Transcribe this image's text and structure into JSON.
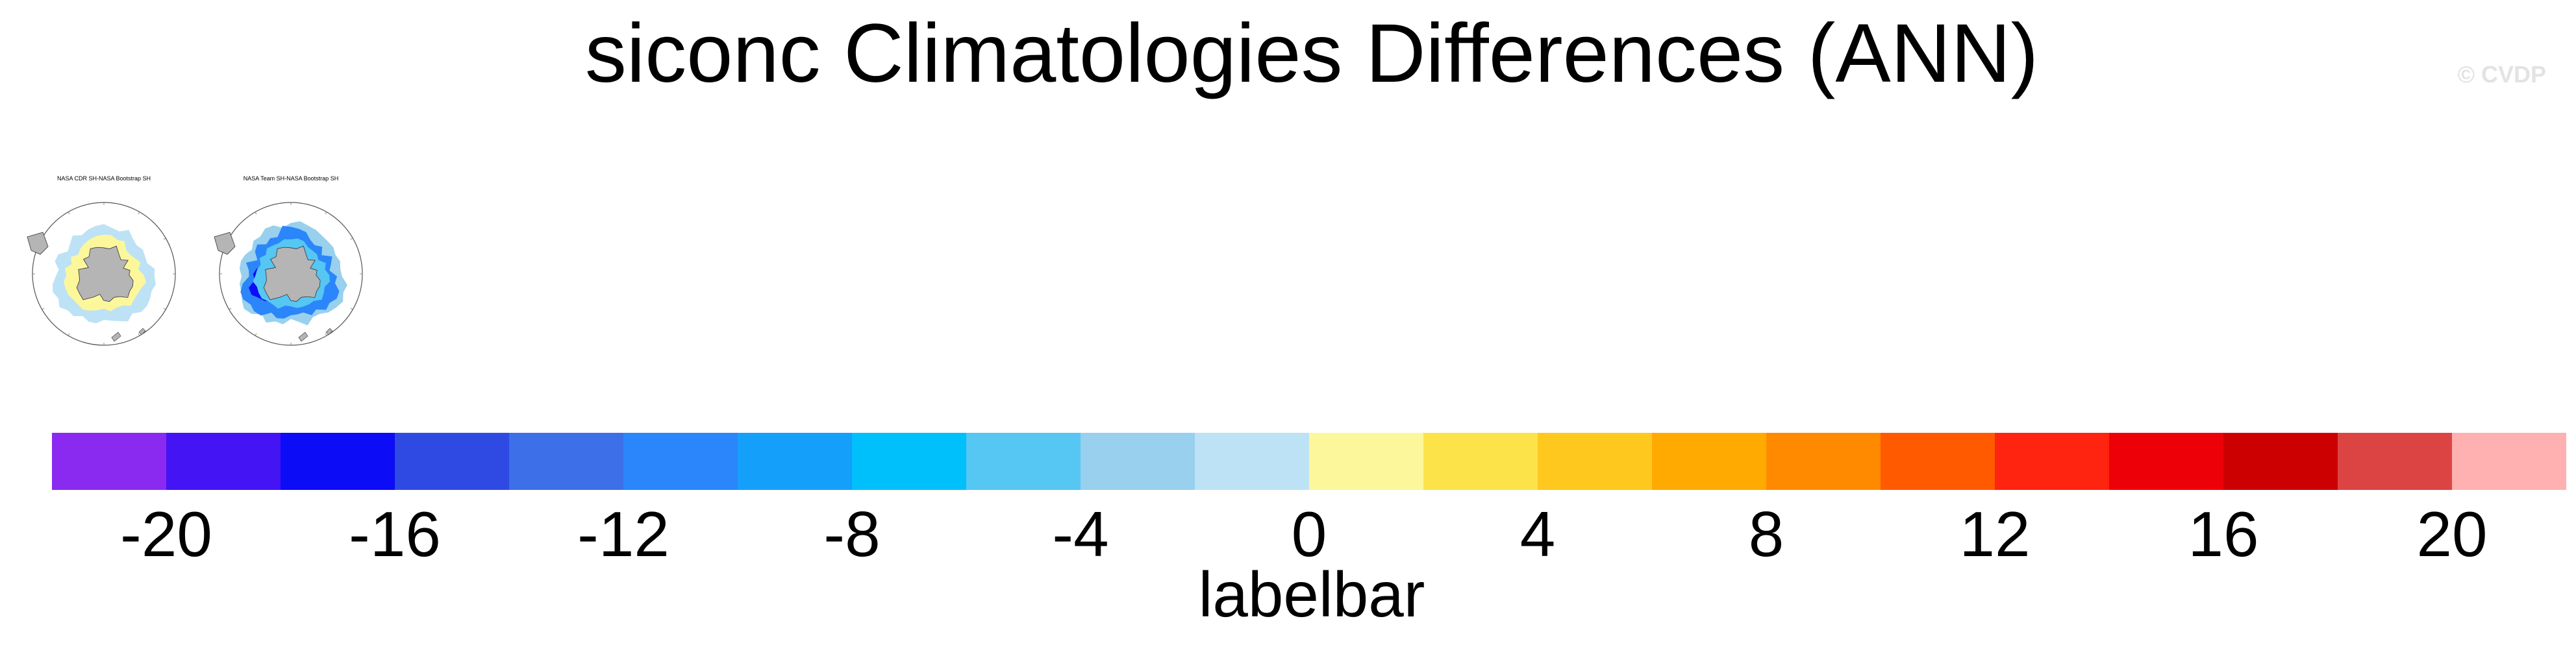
{
  "title": "siconc Climatologies Differences (ANN)",
  "watermark": "© CVDP",
  "panels": [
    {
      "title": "NASA CDR SH-NASA Bootstrap SH",
      "pattern": "cdr"
    },
    {
      "title": "NASA Team SH-NASA Bootstrap SH",
      "pattern": "team"
    }
  ],
  "chart_data": {
    "type": "colorbar",
    "label": "labelbar",
    "range": [
      -22,
      22
    ],
    "ticks": [
      "-20",
      "-16",
      "-12",
      "-8",
      "-4",
      "0",
      "4",
      "8",
      "12",
      "16",
      "20"
    ],
    "tick_values": [
      -20,
      -16,
      -12,
      -8,
      -4,
      0,
      4,
      8,
      12,
      16,
      20
    ],
    "colors": [
      "#8a2af0",
      "#4414f5",
      "#0c0cf7",
      "#2f4ae3",
      "#3c6fe8",
      "#2a86fa",
      "#14a0fa",
      "#00c0fb",
      "#56c6f3",
      "#98d0ee",
      "#bde2f6",
      "#fdf79c",
      "#fde34a",
      "#ffc81e",
      "#ffaa00",
      "#ff8a00",
      "#ff5a00",
      "#ff2410",
      "#ee0008",
      "#cc0000",
      "#dc4444",
      "#ffb0b0"
    ]
  }
}
